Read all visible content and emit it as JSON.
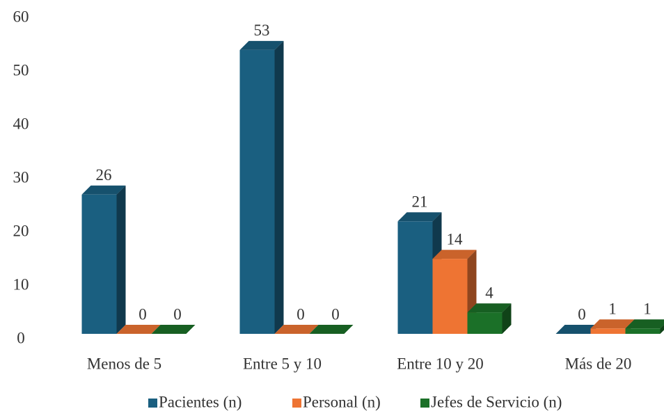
{
  "chart_data": {
    "type": "bar3d",
    "categories": [
      "Menos de 5",
      "Entre 5 y 10",
      "Entre 10 y 20",
      "Más de 20"
    ],
    "series": [
      {
        "name": "Pacientes (n)",
        "color": "#1a5f80",
        "values": [
          26,
          53,
          21,
          0
        ]
      },
      {
        "name": "Personal (n)",
        "color": "#ee7433",
        "values": [
          0,
          0,
          14,
          1
        ]
      },
      {
        "name": "Jefes de Servicio (n)",
        "color": "#1b7028",
        "values": [
          0,
          0,
          4,
          1
        ]
      }
    ],
    "ylim": [
      0,
      60
    ],
    "yticks": [
      0,
      10,
      20,
      30,
      40,
      50,
      60
    ],
    "grid": false,
    "legend": "bottom"
  }
}
